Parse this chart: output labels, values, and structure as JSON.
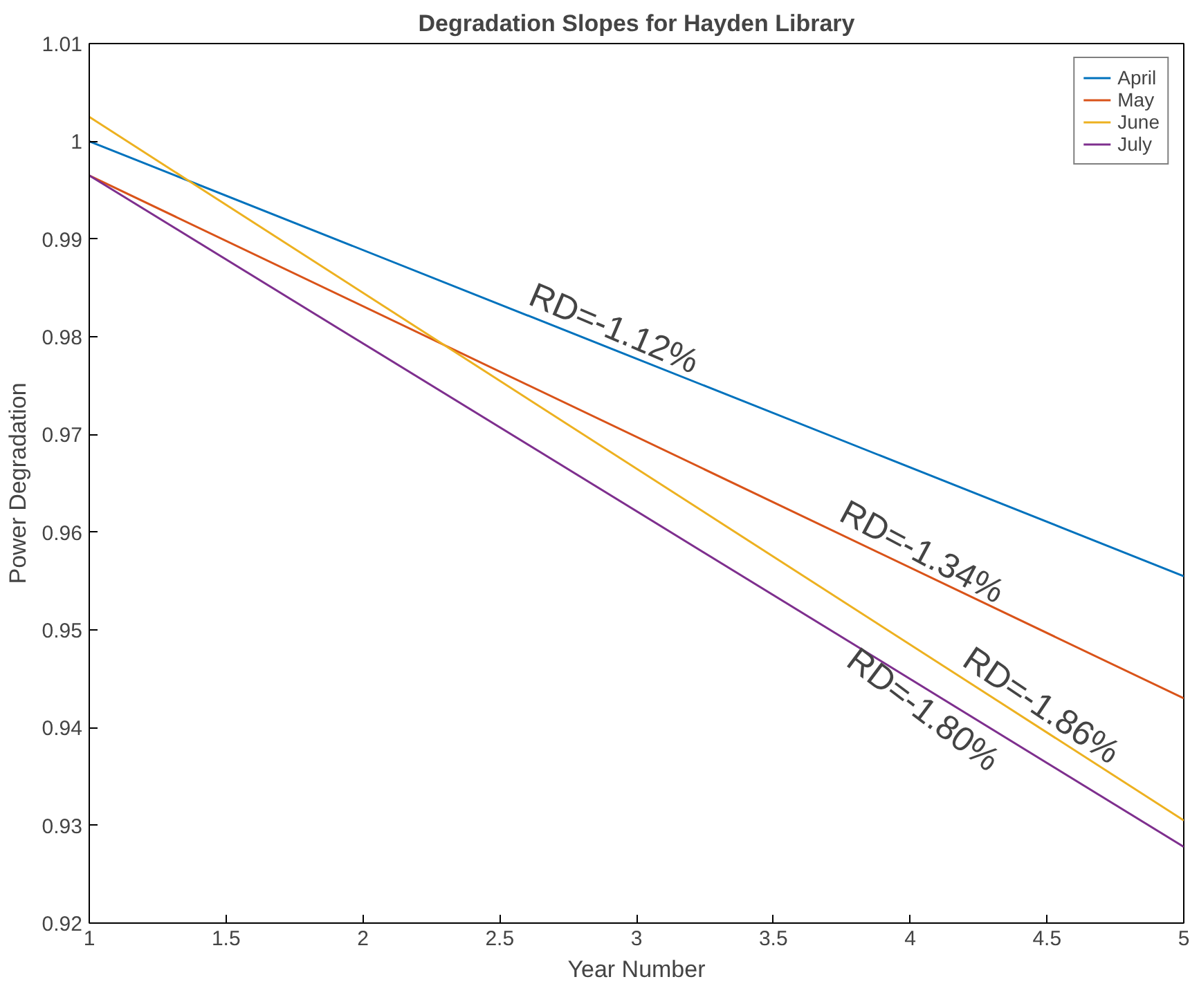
{
  "chart_data": {
    "type": "line",
    "title": "Degradation Slopes for Hayden Library",
    "xlabel": "Year Number",
    "ylabel": "Power Degradation",
    "x": [
      1,
      5
    ],
    "series": [
      {
        "name": "April",
        "color": "#0072bd",
        "values": [
          1.0,
          0.9555
        ]
      },
      {
        "name": "May",
        "color": "#d95319",
        "values": [
          0.9965,
          0.943
        ]
      },
      {
        "name": "June",
        "color": "#edb120",
        "values": [
          1.0025,
          0.9305
        ]
      },
      {
        "name": "July",
        "color": "#7e2f8e",
        "values": [
          0.9965,
          0.9278
        ]
      }
    ],
    "xlim": [
      1,
      5
    ],
    "xticks": [
      1,
      1.5,
      2,
      2.5,
      3,
      3.5,
      4,
      4.5,
      5
    ],
    "ylim": [
      0.92,
      1.01
    ],
    "yticks": [
      0.92,
      0.93,
      0.94,
      0.95,
      0.96,
      0.97,
      0.98,
      0.99,
      1,
      1.01
    ],
    "annotations": [
      {
        "text": "RD=-1.12%",
        "x": 2.89,
        "y": 0.979
      },
      {
        "text": "RD=-1.34%",
        "x": 4.01,
        "y": 0.9562
      },
      {
        "text": "RD=-1.86%",
        "x": 4.44,
        "y": 0.9406
      },
      {
        "text": "RD=-1.80%",
        "x": 4.09,
        "y": 0.9434
      }
    ],
    "legend": "top right",
    "grid": false
  }
}
